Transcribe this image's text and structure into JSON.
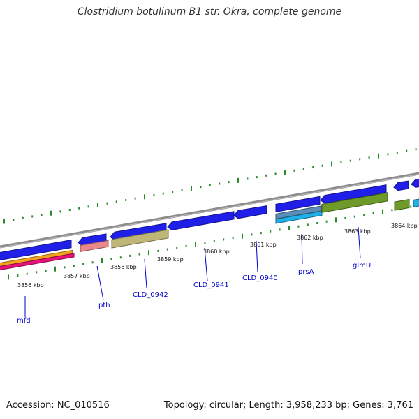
{
  "title": "Clostridium botulinum B1 str. Okra, complete genome",
  "accession": "Accession: NC_010516",
  "summary": "Topology: circular; Length: 3,958,233 bp; Genes: 3,761",
  "colors": {
    "backbone": "#8c8c8c",
    "cds": "#1f1fe8",
    "tick": "#2a8a2a",
    "label": "#0000cc",
    "orange": "#f2a31b",
    "magenta": "#e8127a",
    "pink": "#e8888a",
    "khaki": "#bdb676",
    "olive": "#6e9a2a",
    "steel": "#5b8db8",
    "cyan": "#1fb0e8"
  },
  "ticks": [
    {
      "label": "3856 kbp"
    },
    {
      "label": "3857 kbp"
    },
    {
      "label": "3858 kbp"
    },
    {
      "label": "3859 kbp"
    },
    {
      "label": "3860 kbp"
    },
    {
      "label": "3861 kbp"
    },
    {
      "label": "3862 kbp"
    },
    {
      "label": "3863 kbp"
    },
    {
      "label": "3864 kbp"
    }
  ],
  "genes": [
    {
      "label": "mfd"
    },
    {
      "label": "pth"
    },
    {
      "label": "CLD_0942"
    },
    {
      "label": "CLD_0941"
    },
    {
      "label": "CLD_0940"
    },
    {
      "label": "prsA"
    },
    {
      "label": "glmU"
    }
  ]
}
